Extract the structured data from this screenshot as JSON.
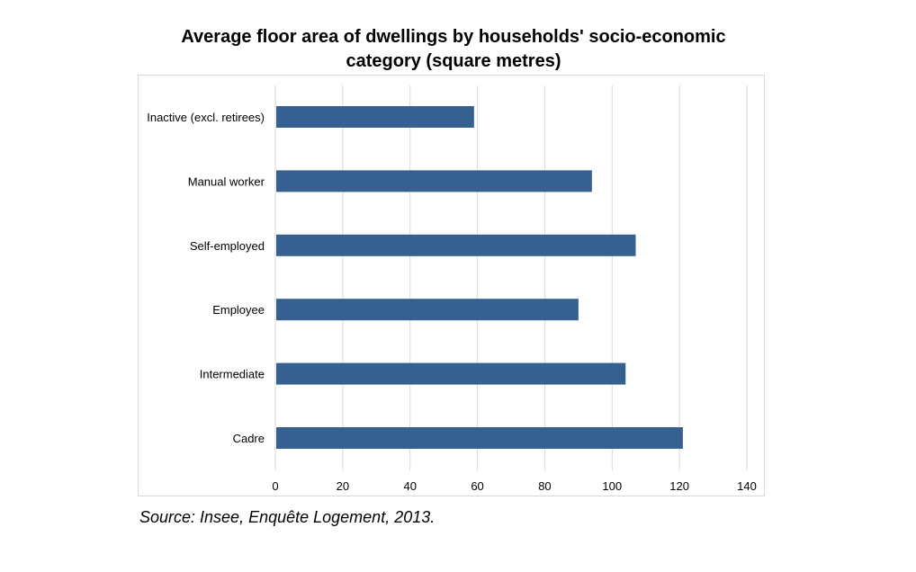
{
  "chart_data": {
    "type": "bar",
    "orientation": "horizontal",
    "title_lines": [
      "Average floor area of dwellings by households' socio-economic",
      "category (square metres)"
    ],
    "categories": [
      "Inactive (excl. retirees)",
      "Manual worker",
      "Self-employed",
      "Employee",
      "Intermediate",
      "Cadre"
    ],
    "values": [
      59,
      94,
      107,
      90,
      104,
      121
    ],
    "xlim": [
      0,
      140
    ],
    "xticks": [
      0,
      20,
      40,
      60,
      80,
      100,
      120,
      140
    ],
    "grid": "vertical",
    "bar_color": "#35608f",
    "source": "Source: Insee, Enquête Logement, 2013."
  }
}
